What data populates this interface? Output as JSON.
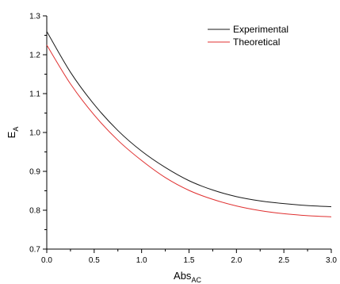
{
  "chart_data": {
    "type": "line",
    "xlabel": {
      "main": "Abs",
      "sub": "AC"
    },
    "ylabel": {
      "main": "E",
      "sub": "A"
    },
    "xlim": [
      0,
      3
    ],
    "ylim": [
      0.7,
      1.3
    ],
    "x_ticks": [
      "0.0",
      "0.5",
      "1.0",
      "1.5",
      "2.0",
      "2.5",
      "3.0"
    ],
    "y_ticks": [
      "0.7",
      "0.8",
      "0.9",
      "1.0",
      "1.1",
      "1.2",
      "1.3"
    ],
    "grid": false,
    "legend_position": "top-right",
    "x": [
      0.0,
      0.25,
      0.5,
      0.75,
      1.0,
      1.25,
      1.5,
      1.75,
      2.0,
      2.25,
      2.5,
      2.75,
      3.0
    ],
    "series": [
      {
        "name": "Experimental",
        "color": "#1a1a1a",
        "values": [
          1.26,
          1.155,
          1.072,
          1.005,
          0.952,
          0.91,
          0.876,
          0.852,
          0.835,
          0.824,
          0.817,
          0.812,
          0.809
        ]
      },
      {
        "name": "Theoretical",
        "color": "#e03030",
        "values": [
          1.225,
          1.125,
          1.045,
          0.98,
          0.928,
          0.884,
          0.851,
          0.828,
          0.811,
          0.799,
          0.791,
          0.786,
          0.783
        ]
      }
    ]
  }
}
